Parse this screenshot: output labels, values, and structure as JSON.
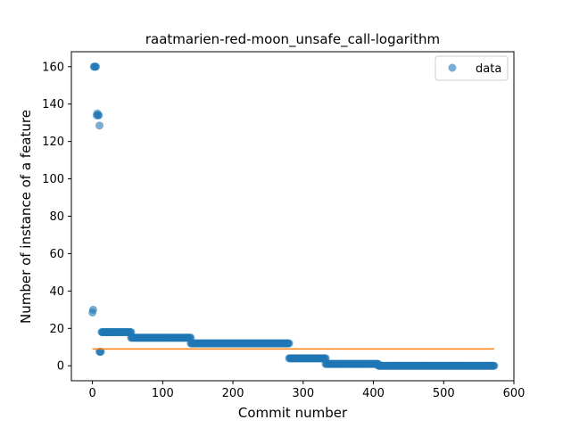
{
  "chart_data": {
    "type": "scatter",
    "title": "raatmarien-red-moon_unsafe_call-logarithm",
    "xlabel": "Commit number",
    "ylabel": "Number of instance of a feature",
    "xlim": [
      -30,
      600
    ],
    "ylim": [
      -8,
      168
    ],
    "xticks": [
      0,
      100,
      200,
      300,
      400,
      500,
      600
    ],
    "yticks": [
      0,
      20,
      40,
      60,
      80,
      100,
      120,
      140,
      160
    ],
    "grid": false,
    "legend": {
      "position": "top-right",
      "entries": [
        "data"
      ]
    },
    "colors": {
      "data": "#1f77b4",
      "fit": "#ff7f0e"
    },
    "series": [
      {
        "name": "data",
        "points": [
          [
            0,
            28.5
          ],
          [
            1,
            30
          ],
          [
            2,
            160
          ],
          [
            3,
            160
          ],
          [
            4,
            160
          ],
          [
            5,
            160
          ],
          [
            6,
            134
          ],
          [
            7,
            135
          ],
          [
            8,
            134
          ],
          [
            9,
            134
          ],
          [
            10,
            128.5
          ],
          [
            10,
            7.5
          ],
          [
            11,
            7.5
          ],
          [
            12,
            7.5
          ]
        ],
        "segments": [
          {
            "x_start": 13,
            "x_end": 55,
            "y": 18
          },
          {
            "x_start": 55,
            "x_end": 140,
            "y": 15
          },
          {
            "x_start": 140,
            "x_end": 280,
            "y": 12
          },
          {
            "x_start": 280,
            "x_end": 332,
            "y": 4
          },
          {
            "x_start": 332,
            "x_end": 407,
            "y": 1
          },
          {
            "x_start": 407,
            "x_end": 572,
            "y": 0
          }
        ]
      },
      {
        "name": "",
        "type": "line",
        "x": [
          0,
          572
        ],
        "y": [
          9,
          9
        ]
      }
    ]
  }
}
